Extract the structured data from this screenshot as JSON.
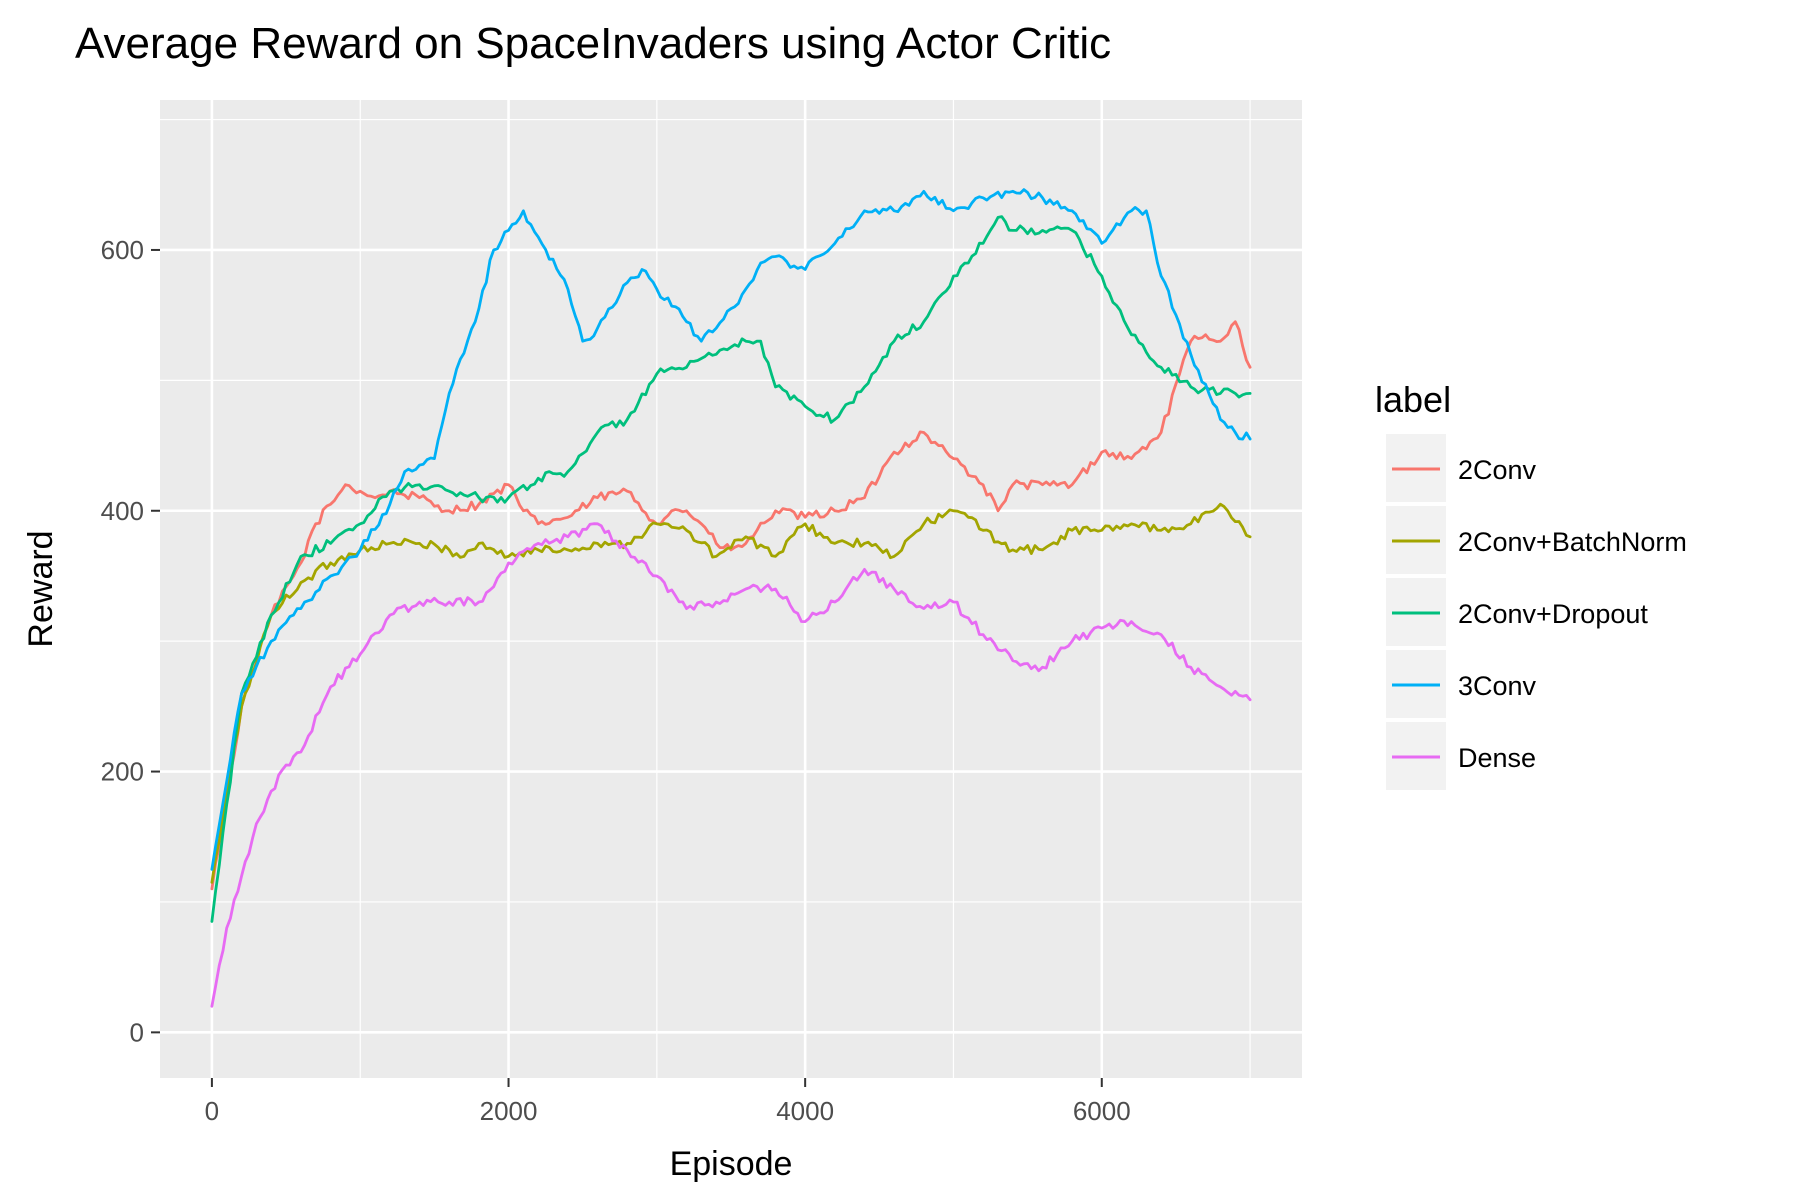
{
  "chart_data": {
    "type": "line",
    "title": "Average Reward on SpaceInvaders using Actor Critic",
    "xlabel": "Episode",
    "ylabel": "Reward",
    "xlim": [
      -350,
      7350
    ],
    "ylim": [
      -35,
      715
    ],
    "x_ticks": [
      0,
      2000,
      4000,
      6000
    ],
    "y_ticks": [
      0,
      200,
      400,
      600
    ],
    "x_minor_ticks": [
      1000,
      3000,
      5000,
      7000
    ],
    "y_minor_ticks": [
      100,
      300,
      500,
      700
    ],
    "grid": true,
    "legend": {
      "title": "label",
      "position": "right"
    },
    "series": [
      {
        "name": "2Conv",
        "color": "#F8766D",
        "x": [
          0,
          200,
          400,
          600,
          700,
          800,
          900,
          1000,
          1100,
          1200,
          1400,
          1600,
          1800,
          2000,
          2100,
          2200,
          2400,
          2600,
          2800,
          3000,
          3100,
          3200,
          3300,
          3400,
          3500,
          3600,
          3800,
          4000,
          4200,
          4400,
          4600,
          4800,
          4900,
          5000,
          5200,
          5300,
          5400,
          5600,
          5800,
          6000,
          6200,
          6400,
          6600,
          6700,
          6800,
          6900,
          7000
        ],
        "y": [
          110,
          250,
          320,
          360,
          390,
          405,
          420,
          415,
          410,
          415,
          410,
          400,
          405,
          420,
          400,
          390,
          395,
          410,
          415,
          390,
          400,
          400,
          390,
          375,
          370,
          375,
          400,
          395,
          400,
          410,
          445,
          460,
          450,
          440,
          420,
          400,
          420,
          420,
          420,
          445,
          440,
          460,
          530,
          535,
          530,
          545,
          510
        ]
      },
      {
        "name": "2Conv+BatchNorm",
        "color": "#A3A500",
        "x": [
          0,
          200,
          400,
          600,
          800,
          1000,
          1200,
          1400,
          1600,
          1700,
          1800,
          2000,
          2200,
          2400,
          2600,
          2800,
          3000,
          3200,
          3400,
          3600,
          3800,
          4000,
          4200,
          4400,
          4600,
          4800,
          5000,
          5100,
          5200,
          5400,
          5600,
          5800,
          6000,
          6200,
          6400,
          6600,
          6800,
          7000
        ],
        "y": [
          115,
          250,
          320,
          345,
          360,
          370,
          375,
          375,
          370,
          365,
          375,
          365,
          370,
          370,
          375,
          375,
          390,
          385,
          365,
          380,
          365,
          390,
          375,
          375,
          365,
          390,
          400,
          395,
          385,
          370,
          370,
          385,
          385,
          390,
          385,
          390,
          405,
          380
        ]
      },
      {
        "name": "2Conv+Dropout",
        "color": "#00BF7D",
        "x": [
          0,
          200,
          400,
          600,
          800,
          1000,
          1200,
          1400,
          1600,
          1800,
          2000,
          2200,
          2400,
          2600,
          2800,
          3000,
          3200,
          3400,
          3600,
          3700,
          3800,
          4000,
          4200,
          4400,
          4600,
          4800,
          5000,
          5100,
          5300,
          5400,
          5600,
          5800,
          6000,
          6200,
          6400,
          6600,
          6800,
          7000
        ],
        "y": [
          85,
          260,
          320,
          365,
          375,
          390,
          415,
          420,
          415,
          410,
          410,
          425,
          430,
          460,
          470,
          505,
          510,
          520,
          530,
          530,
          495,
          480,
          470,
          495,
          530,
          545,
          580,
          590,
          625,
          615,
          615,
          615,
          580,
          535,
          510,
          495,
          490,
          490
        ]
      },
      {
        "name": "3Conv",
        "color": "#00B0F6",
        "x": [
          0,
          200,
          400,
          600,
          800,
          1000,
          1200,
          1300,
          1400,
          1500,
          1600,
          1800,
          1900,
          2000,
          2100,
          2200,
          2400,
          2500,
          2600,
          2800,
          2900,
          3000,
          3200,
          3300,
          3400,
          3500,
          3600,
          3700,
          3800,
          4000,
          4200,
          4400,
          4600,
          4800,
          5000,
          5200,
          5400,
          5600,
          5800,
          6000,
          6200,
          6300,
          6400,
          6600,
          6800,
          6900,
          7000
        ],
        "y": [
          125,
          260,
          300,
          325,
          350,
          370,
          405,
          430,
          435,
          440,
          490,
          555,
          600,
          615,
          630,
          610,
          570,
          530,
          540,
          575,
          585,
          570,
          545,
          530,
          540,
          555,
          570,
          590,
          595,
          585,
          605,
          630,
          630,
          645,
          630,
          640,
          645,
          640,
          630,
          605,
          630,
          630,
          580,
          520,
          470,
          460,
          455
        ]
      },
      {
        "name": "Dense",
        "color": "#E76BF3",
        "x": [
          0,
          100,
          200,
          300,
          400,
          500,
          600,
          800,
          1000,
          1200,
          1400,
          1600,
          1800,
          2000,
          2200,
          2400,
          2600,
          2800,
          3000,
          3200,
          3400,
          3600,
          3800,
          4000,
          4200,
          4400,
          4600,
          4800,
          5000,
          5200,
          5400,
          5600,
          5800,
          6000,
          6200,
          6400,
          6600,
          6800,
          7000
        ],
        "y": [
          20,
          80,
          120,
          160,
          185,
          205,
          215,
          265,
          290,
          320,
          330,
          330,
          330,
          360,
          375,
          380,
          390,
          370,
          350,
          325,
          330,
          340,
          340,
          315,
          330,
          355,
          340,
          325,
          330,
          305,
          285,
          280,
          300,
          310,
          315,
          305,
          280,
          265,
          255
        ]
      }
    ]
  }
}
